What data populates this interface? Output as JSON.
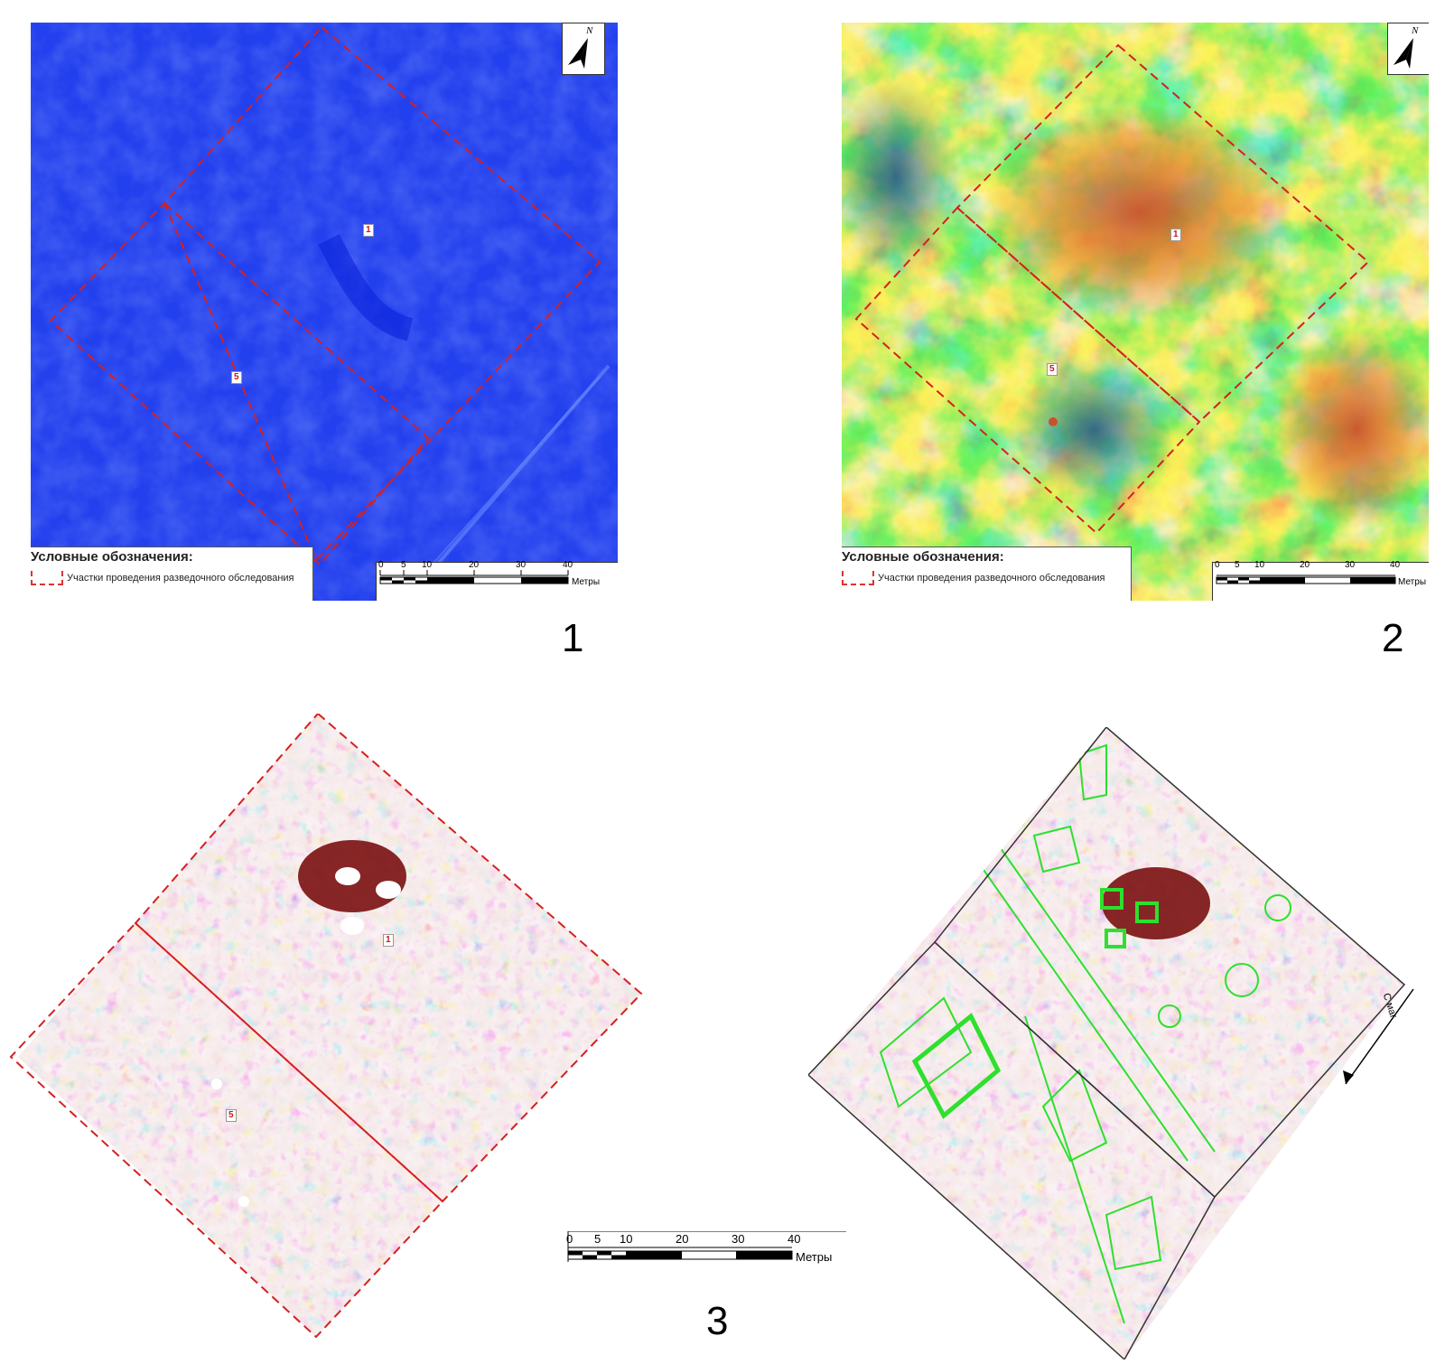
{
  "panels": {
    "p1": {
      "figure_number": "1",
      "plot_labels": [
        "1",
        "5"
      ],
      "north_letter": "N",
      "legend_title": "Условные обозначения:",
      "legend_item": "Участки проведения разведочного обследования",
      "scale_ticks": [
        "0",
        "5",
        "10",
        "20",
        "30",
        "40"
      ],
      "scale_unit": "Метры"
    },
    "p2": {
      "figure_number": "2",
      "plot_labels": [
        "1",
        "5"
      ],
      "north_letter": "N",
      "legend_title": "Условные обозначения:",
      "legend_item": "Участки проведения разведочного обследования",
      "scale_ticks": [
        "0",
        "5",
        "10",
        "20",
        "30",
        "40"
      ],
      "scale_unit": "Метры"
    },
    "p3": {
      "figure_number": "3",
      "plot_labels": [
        "1",
        "5"
      ],
      "scale_ticks": [
        "0",
        "5",
        "10",
        "20",
        "30",
        "40"
      ],
      "scale_unit": "Метры",
      "north_label": "С маг"
    }
  },
  "colors": {
    "boundary_dashed": "#d52020",
    "interpretation_lines": "#2ee02e",
    "blue_field": "#1f3cf0",
    "heat_low": "#2e6a8f",
    "heat_high": "#c85a2c"
  }
}
